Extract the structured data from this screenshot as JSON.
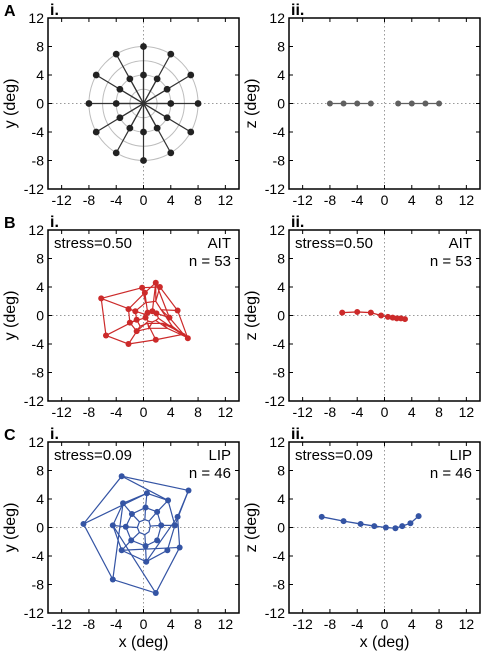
{
  "figure": {
    "row_labels": [
      "A",
      "B",
      "C"
    ],
    "col_labels": [
      "i.",
      "ii."
    ],
    "ticks": [
      "-12",
      "-8",
      "-4",
      "0",
      "4",
      "8",
      "12"
    ],
    "xlabel": "x (deg)",
    "ylabel_left": "y (deg)",
    "ylabel_right": "z (deg)",
    "colors": {
      "A": "#606060",
      "B": "#cc2a2a",
      "C": "#3454a4",
      "ring": "#bdbdbd",
      "zero": "#9a9a9a"
    }
  },
  "chart_data": [
    {
      "type": "scatter",
      "panel": "A-i",
      "xlabel": "",
      "ylabel": "y (deg)",
      "xlim": [
        -14,
        14
      ],
      "ylim": [
        -12,
        12
      ],
      "stress": "",
      "region": "",
      "n_text": "",
      "rings": [
        2,
        4,
        6,
        8
      ],
      "spokes_deg": [
        0,
        30,
        60,
        90,
        120,
        150,
        180,
        210,
        240,
        270,
        300,
        330
      ],
      "ring_radii": [
        4,
        8
      ],
      "points": [
        [
          4,
          0
        ],
        [
          3.46,
          2
        ],
        [
          2,
          3.46
        ],
        [
          0,
          4
        ],
        [
          -2,
          3.46
        ],
        [
          -3.46,
          2
        ],
        [
          -4,
          0
        ],
        [
          -3.46,
          -2
        ],
        [
          -2,
          -3.46
        ],
        [
          0,
          -4
        ],
        [
          2,
          -3.46
        ],
        [
          3.46,
          -2
        ],
        [
          8,
          0
        ],
        [
          6.93,
          4
        ],
        [
          4,
          6.93
        ],
        [
          0,
          8
        ],
        [
          -4,
          6.93
        ],
        [
          -6.93,
          4
        ],
        [
          -8,
          0
        ],
        [
          -6.93,
          -4
        ],
        [
          -4,
          -6.93
        ],
        [
          0,
          -8
        ],
        [
          4,
          -6.93
        ],
        [
          6.93,
          -4
        ]
      ]
    },
    {
      "type": "line",
      "panel": "A-ii",
      "xlabel": "",
      "ylabel": "z (deg)",
      "xlim": [
        -14,
        14
      ],
      "ylim": [
        -12,
        12
      ],
      "stress": "",
      "region": "",
      "n_text": "",
      "series": [
        {
          "x": [
            -8,
            -6,
            -4,
            -2
          ],
          "y": [
            0,
            0,
            0,
            0
          ]
        },
        {
          "x": [
            2,
            4,
            6,
            8
          ],
          "y": [
            0,
            0,
            0,
            0
          ]
        }
      ]
    },
    {
      "type": "scatter",
      "panel": "B-i",
      "xlabel": "",
      "ylabel": "y (deg)",
      "xlim": [
        -14,
        14
      ],
      "ylim": [
        -12,
        12
      ],
      "stress": "stress=0.50",
      "region": "AIT",
      "n_text": "n = 53",
      "web_rings": [
        [
          [
            2.2,
            -0.4
          ],
          [
            1.9,
            0.3
          ],
          [
            1.3,
            0.6
          ],
          [
            0.6,
            0.4
          ],
          [
            0.1,
            0.2
          ],
          [
            0.3,
            -0.3
          ],
          [
            0.7,
            -0.8
          ],
          [
            1.3,
            -0.9
          ],
          [
            1.8,
            -0.7
          ]
        ],
        [
          [
            6.2,
            -3.0
          ],
          [
            3.8,
            -0.3
          ],
          [
            1.8,
            4.6
          ],
          [
            0.2,
            3.2
          ],
          [
            -2.2,
            0.9
          ],
          [
            -2.0,
            -1.0
          ],
          [
            -1.0,
            -2.2
          ],
          [
            0.8,
            -1.8
          ],
          [
            3.5,
            -1.8
          ]
        ],
        [
          [
            4.2,
            -1.5
          ],
          [
            2.6,
            0.8
          ],
          [
            1.8,
            2.0
          ],
          [
            0.3,
            1.8
          ],
          [
            -1.2,
            0.6
          ],
          [
            -1.0,
            -0.6
          ],
          [
            -0.5,
            -1.5
          ],
          [
            0.6,
            -1.1
          ],
          [
            2.8,
            -1.1
          ]
        ],
        [
          [
            6.5,
            -3.2
          ],
          [
            5.0,
            0.7
          ],
          [
            2.4,
            4.0
          ],
          [
            -0.2,
            3.9
          ],
          [
            -6.2,
            2.4
          ],
          [
            -5.5,
            -2.8
          ],
          [
            -2.2,
            -4.0
          ],
          [
            1.8,
            -3.4
          ],
          [
            6.0,
            -2.6
          ]
        ]
      ],
      "points": [
        [
          6.5,
          -3.2
        ],
        [
          5.0,
          0.7
        ],
        [
          2.4,
          4.0
        ],
        [
          1.8,
          4.6
        ],
        [
          -0.2,
          3.9
        ],
        [
          -6.2,
          2.4
        ],
        [
          -5.5,
          -2.8
        ],
        [
          -2.2,
          -4.0
        ],
        [
          1.8,
          -3.4
        ],
        [
          0.2,
          3.2
        ],
        [
          -2.2,
          0.9
        ],
        [
          -2.0,
          -1.0
        ],
        [
          -1.0,
          -2.2
        ],
        [
          3.8,
          -0.3
        ],
        [
          -1.2,
          0.6
        ],
        [
          -1.0,
          -0.6
        ],
        [
          1.3,
          0.6
        ],
        [
          0.6,
          0.4
        ],
        [
          0.3,
          -0.3
        ],
        [
          1.9,
          0.3
        ]
      ]
    },
    {
      "type": "line",
      "panel": "B-ii",
      "xlabel": "",
      "ylabel": "z (deg)",
      "xlim": [
        -14,
        14
      ],
      "ylim": [
        -12,
        12
      ],
      "stress": "stress=0.50",
      "region": "AIT",
      "n_text": "n = 53",
      "series": [
        {
          "x": [
            -6.2,
            -4.0,
            -2.0,
            -0.5,
            0.5,
            1.2,
            1.8,
            2.4,
            3.0
          ],
          "y": [
            0.4,
            0.5,
            0.4,
            0.0,
            -0.2,
            -0.3,
            -0.4,
            -0.4,
            -0.5
          ]
        }
      ]
    },
    {
      "type": "scatter",
      "panel": "C-i",
      "xlabel": "x (deg)",
      "ylabel": "y (deg)",
      "xlim": [
        -14,
        14
      ],
      "ylim": [
        -12,
        12
      ],
      "stress": "stress=0.09",
      "region": "LIP",
      "n_text": "n = 46",
      "web_rings": [
        [
          [
            1.0,
            0.2
          ],
          [
            0.8,
            0.9
          ],
          [
            0.2,
            1.1
          ],
          [
            -0.6,
            0.8
          ],
          [
            -0.9,
            0.0
          ],
          [
            -0.6,
            -0.7
          ],
          [
            0.2,
            -1.0
          ],
          [
            0.8,
            -0.6
          ]
        ],
        [
          [
            2.6,
            0.3
          ],
          [
            2.0,
            2.2
          ],
          [
            0.3,
            2.8
          ],
          [
            -1.7,
            1.9
          ],
          [
            -2.6,
            0.1
          ],
          [
            -1.8,
            -1.8
          ],
          [
            0.3,
            -2.6
          ],
          [
            2.0,
            -1.8
          ]
        ],
        [
          [
            4.6,
            0.3
          ],
          [
            3.6,
            3.8
          ],
          [
            0.5,
            4.8
          ],
          [
            -3.0,
            3.4
          ],
          [
            -4.5,
            0.3
          ],
          [
            -3.2,
            -3.2
          ],
          [
            0.4,
            -4.8
          ],
          [
            3.5,
            -3.2
          ]
        ],
        [
          [
            6.6,
            5.2
          ],
          [
            -3.2,
            7.2
          ],
          [
            -8.8,
            0.5
          ],
          [
            -4.5,
            -7.3
          ],
          [
            1.8,
            -9.2
          ],
          [
            5.3,
            -2.8
          ],
          [
            5.0,
            1.5
          ]
        ]
      ],
      "points": [
        [
          6.6,
          5.2
        ],
        [
          -3.2,
          7.2
        ],
        [
          -8.8,
          0.5
        ],
        [
          -4.5,
          -7.3
        ],
        [
          1.8,
          -9.2
        ],
        [
          5.3,
          -2.8
        ],
        [
          5.0,
          1.5
        ],
        [
          4.6,
          0.3
        ],
        [
          3.6,
          3.8
        ],
        [
          0.5,
          4.8
        ],
        [
          -3.0,
          3.4
        ],
        [
          -4.5,
          0.3
        ],
        [
          -3.2,
          -3.2
        ],
        [
          0.4,
          -4.8
        ],
        [
          3.5,
          -3.2
        ],
        [
          2.6,
          0.3
        ],
        [
          2.0,
          2.2
        ],
        [
          0.3,
          2.8
        ],
        [
          -1.7,
          1.9
        ],
        [
          -2.6,
          0.1
        ],
        [
          -1.8,
          -1.8
        ],
        [
          0.3,
          -2.6
        ],
        [
          2.0,
          -1.8
        ]
      ]
    },
    {
      "type": "line",
      "panel": "C-ii",
      "xlabel": "x (deg)",
      "ylabel": "z (deg)",
      "xlim": [
        -14,
        14
      ],
      "ylim": [
        -12,
        12
      ],
      "stress": "stress=0.09",
      "region": "LIP",
      "n_text": "n = 46",
      "series": [
        {
          "x": [
            -9.2,
            -6.0,
            -3.5,
            -1.5,
            0.2,
            1.6,
            2.6,
            3.8,
            5.0
          ],
          "y": [
            1.5,
            0.9,
            0.5,
            0.2,
            0.0,
            -0.1,
            0.2,
            0.6,
            1.6
          ]
        }
      ]
    }
  ]
}
